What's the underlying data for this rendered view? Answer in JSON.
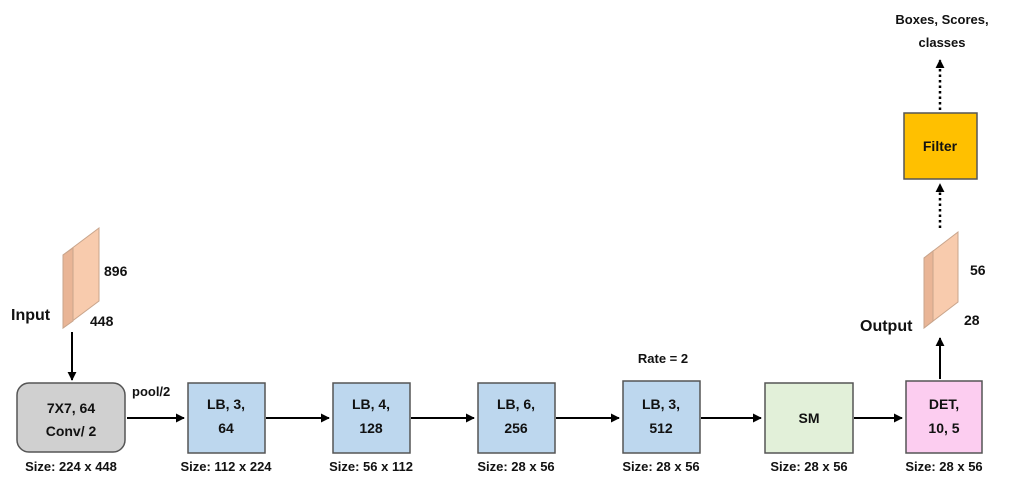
{
  "colors": {
    "gray_box": "#d0d0d0",
    "blue_box": "#bdd7ee",
    "green_box": "#e2f0d9",
    "pink_box": "#fccdf0",
    "filter_box": "#ffc000",
    "slab": "#f8cbad"
  },
  "input": {
    "label": "Input",
    "dim_top": "896",
    "dim_bottom": "448"
  },
  "blocks": [
    {
      "line1": "7X7, 64",
      "line2": "Conv/ 2",
      "size": "Size: 224 x 448"
    },
    {
      "line1": "LB, 3,",
      "line2": "64",
      "size": "Size: 112 x 224"
    },
    {
      "line1": "LB, 4,",
      "line2": "128",
      "size": "Size: 56 x 112"
    },
    {
      "line1": "LB, 6,",
      "line2": "256",
      "size": "Size: 28 x 56"
    },
    {
      "line1": "LB, 3,",
      "line2": "512",
      "size": "Size: 28 x 56"
    },
    {
      "line1": "SM",
      "size": "Size: 28 x 56"
    },
    {
      "line1": "DET,",
      "line2": "10, 5",
      "size": "Size: 28 x 56"
    }
  ],
  "pool_label": "pool/2",
  "rate_label": "Rate = 2",
  "output": {
    "label": "Output",
    "dim_top": "56",
    "dim_bottom": "28"
  },
  "filter": {
    "label": "Filter"
  },
  "result": {
    "line1": "Boxes, Scores,",
    "line2": "classes"
  }
}
